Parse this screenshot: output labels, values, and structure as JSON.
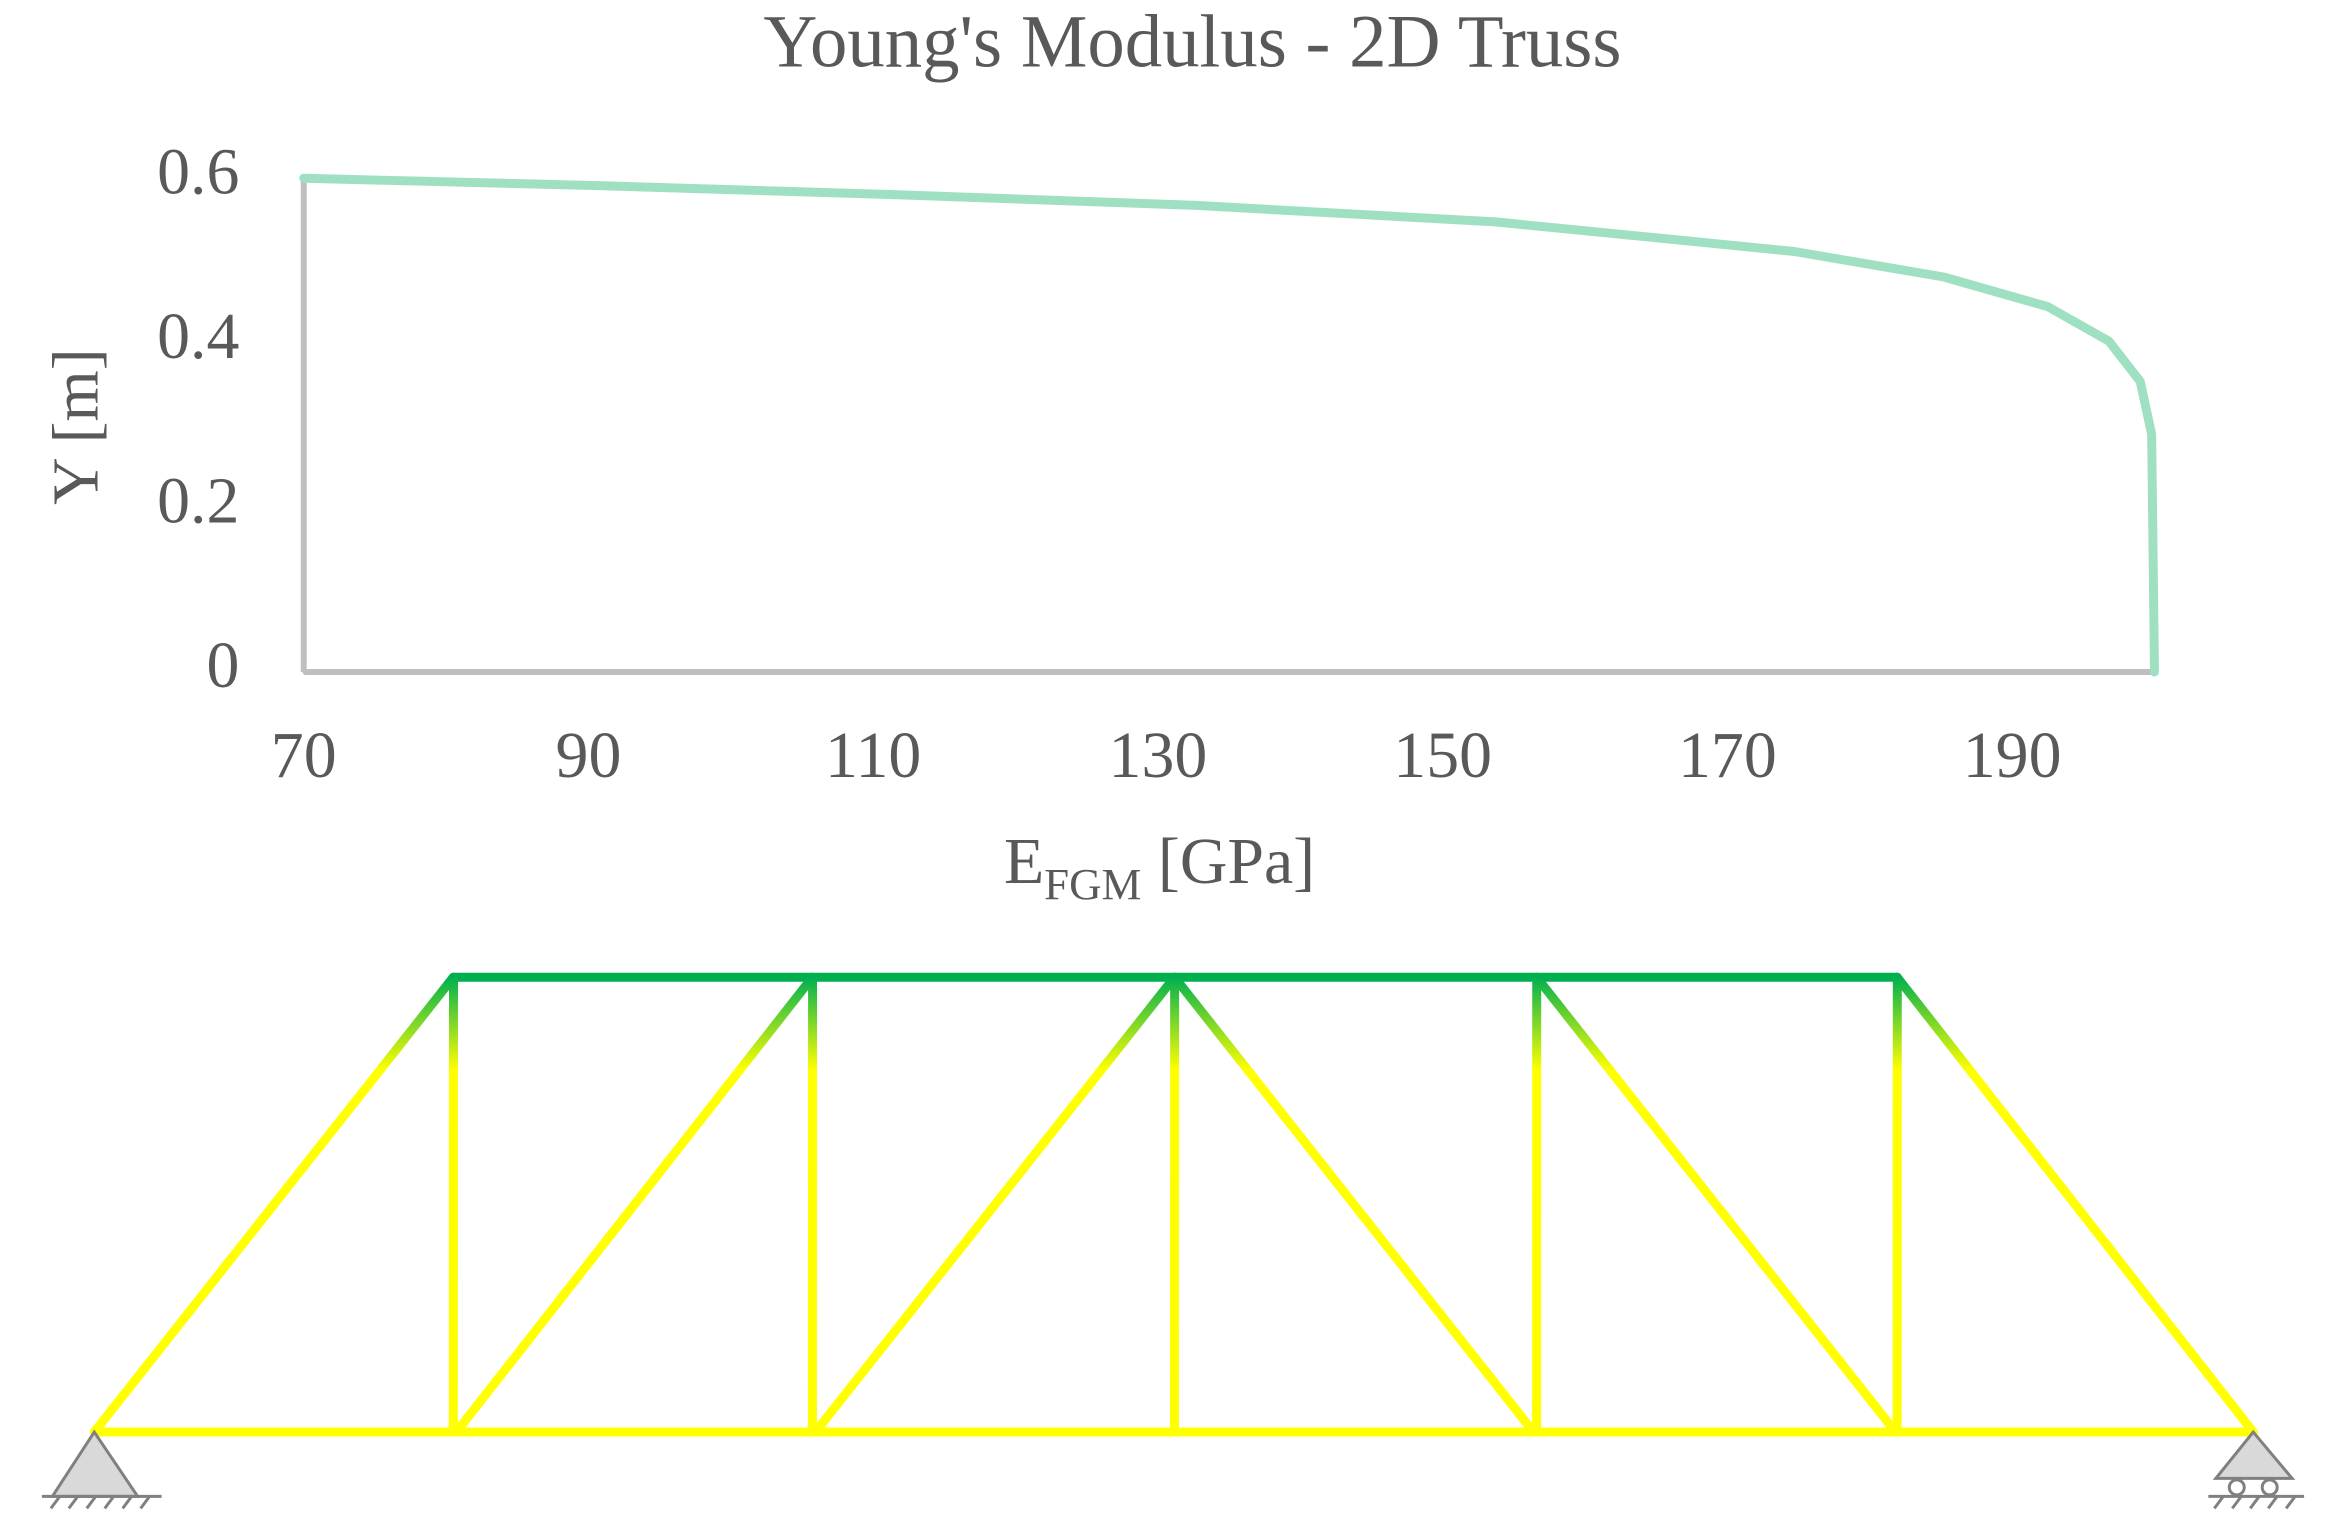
{
  "chart_data": {
    "type": "line",
    "title": "Young's Modulus - 2D Truss",
    "x_label": [
      "E",
      "FGM",
      " [GPa]"
    ],
    "y_label": "Y [m]",
    "x": [
      70,
      90.7,
      111.7,
      132.7,
      153.7,
      174.7,
      185.2,
      192.5,
      196.8,
      199,
      199.8,
      200
    ],
    "values": [
      0.6,
      0.591,
      0.58,
      0.567,
      0.547,
      0.511,
      0.48,
      0.444,
      0.402,
      0.353,
      0.289,
      0
    ],
    "color": "#9fe0c2",
    "xlim": [
      70,
      200
    ],
    "xticks": [
      70,
      90,
      110,
      130,
      150,
      170,
      190
    ],
    "ylim": [
      0,
      0.6
    ],
    "yticks": [
      0,
      0.2,
      0.4,
      0.6
    ]
  }
}
